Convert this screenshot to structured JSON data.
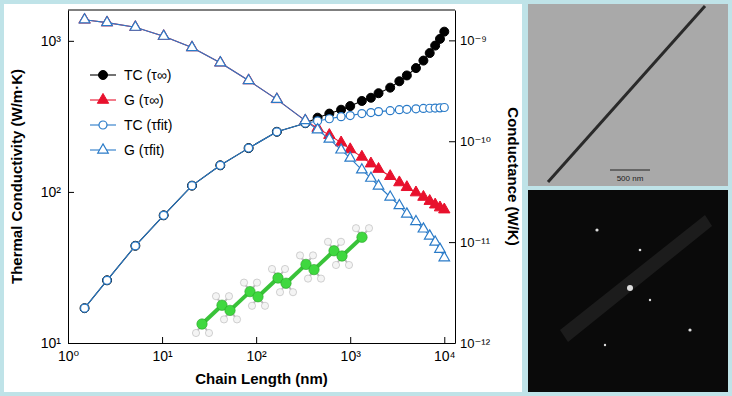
{
  "chart_data": {
    "type": "line",
    "x_label": "Chain Length (nm)",
    "y_label": "Thermal Conductivity (W/m·K)",
    "y2_label": "Conductance (W/K)",
    "log": true,
    "legend": "upper left",
    "xlim": [
      1,
      13000
    ],
    "xticks": [
      {
        "value": 1,
        "label": "10⁰"
      },
      {
        "value": 10,
        "label": "10¹"
      },
      {
        "value": 100,
        "label": "10²"
      },
      {
        "value": 1000,
        "label": "10³"
      },
      {
        "value": 10000,
        "label": "10⁴"
      }
    ],
    "ylim": [
      10,
      1600
    ],
    "yticks": [
      {
        "value": 10,
        "label": "10¹"
      },
      {
        "value": 100,
        "label": "10²"
      },
      {
        "value": 1000,
        "label": "10³"
      }
    ],
    "y2lim": [
      1e-12,
      2e-09
    ],
    "y2ticks": [
      {
        "value": 1e-12,
        "label": "10⁻¹²"
      },
      {
        "value": 1e-11,
        "label": "10⁻¹¹"
      },
      {
        "value": 1e-10,
        "label": "10⁻¹⁰"
      },
      {
        "value": 1e-09,
        "label": "10⁻⁹"
      }
    ],
    "x": [
      1.5,
      2.6,
      5.2,
      10.4,
      20.8,
      41.6,
      83.2,
      166,
      333,
      450,
      600,
      800,
      1000,
      1330,
      1660,
      2000,
      2660,
      3330,
      4000,
      5000,
      6000,
      7000,
      8000,
      9000,
      10000
    ],
    "series": [
      {
        "name": "TC (τ∞)",
        "color": "#000000",
        "marker": "circle",
        "line_style": "solid",
        "values": [
          17,
          26,
          44,
          70,
          110,
          150,
          195,
          250,
          285,
          310,
          330,
          350,
          370,
          400,
          420,
          450,
          490,
          540,
          590,
          660,
          740,
          830,
          930,
          1030,
          1150
        ]
      },
      {
        "name": "G (τ∞)",
        "color": "#e8112d",
        "marker": "triangle",
        "line_style": "solid",
        "axis": "y2",
        "values": [
          1.6e-09,
          1.5e-09,
          1.35e-09,
          1.1e-09,
          8.5e-10,
          6e-10,
          4e-10,
          2.6e-10,
          1.6e-10,
          1.35e-10,
          1.15e-10,
          9.7e-11,
          8.3e-11,
          7e-11,
          6e-11,
          5.3e-11,
          4.5e-11,
          3.9e-11,
          3.5e-11,
          3.1e-11,
          2.8e-11,
          2.55e-11,
          2.35e-11,
          2.2e-11,
          2.1e-11
        ]
      },
      {
        "name": "TC (τfit)",
        "color": "#2a7bc8",
        "marker": "circle-open",
        "line_style": "solid",
        "values": [
          17,
          26,
          44,
          70,
          110,
          150,
          195,
          250,
          285,
          295,
          305,
          315,
          320,
          330,
          335,
          340,
          345,
          350,
          352,
          355,
          357,
          358,
          359,
          360,
          362
        ]
      },
      {
        "name": "G (τfit)",
        "color": "#2a7bc8",
        "marker": "triangle-open",
        "line_style": "solid",
        "axis": "y2",
        "values": [
          1.6e-09,
          1.5e-09,
          1.35e-09,
          1.1e-09,
          8.5e-10,
          6e-10,
          4e-10,
          2.6e-10,
          1.6e-10,
          1.3e-10,
          1.05e-10,
          8.2e-11,
          6.8e-11,
          5.2e-11,
          4.3e-11,
          3.6e-11,
          2.8e-11,
          2.3e-11,
          1.9e-11,
          1.6e-11,
          1.35e-11,
          1.15e-11,
          1e-11,
          8.5e-12,
          7e-12
        ]
      }
    ],
    "annotations": [
      "500 nm"
    ]
  }
}
